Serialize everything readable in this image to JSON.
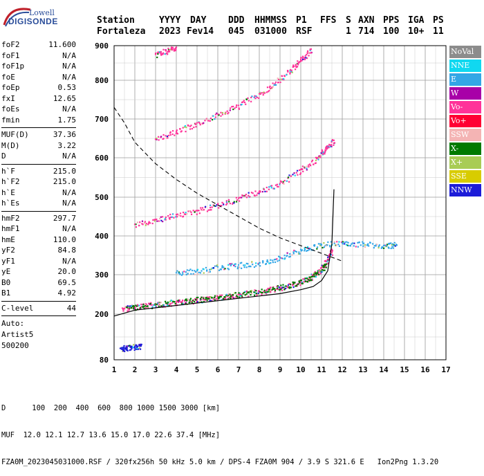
{
  "logo": {
    "line1": "Lowell",
    "line2": "DIGISONDE"
  },
  "header": {
    "row1": [
      "Station",
      "YYYY",
      "DAY",
      "DDD",
      "HHMMSS",
      "P1",
      "FFS",
      "S",
      "AXN",
      "PPS",
      "IGA",
      "PS"
    ],
    "row2": [
      "Fortaleza",
      "2023",
      "Fev14",
      "045",
      "031000",
      "RSF",
      "1",
      "714",
      "100",
      "10+",
      "11"
    ]
  },
  "parameters": {
    "group1": [
      {
        "name": "foF2",
        "value": "11.600"
      },
      {
        "name": "foF1",
        "value": "N/A"
      },
      {
        "name": "foF1p",
        "value": "N/A"
      },
      {
        "name": "foE",
        "value": "N/A"
      },
      {
        "name": "foEp",
        "value": "0.53"
      },
      {
        "name": "fxI",
        "value": "12.65"
      },
      {
        "name": "foEs",
        "value": "N/A"
      },
      {
        "name": "fmin",
        "value": "1.75"
      }
    ],
    "group2": [
      {
        "name": "MUF(D)",
        "value": "37.36"
      },
      {
        "name": "M(D)",
        "value": "3.22"
      },
      {
        "name": "D",
        "value": "N/A"
      }
    ],
    "group3": [
      {
        "name": "h`F",
        "value": "215.0"
      },
      {
        "name": "h`F2",
        "value": "215.0"
      },
      {
        "name": "h`E",
        "value": "N/A"
      },
      {
        "name": "h`Es",
        "value": "N/A"
      }
    ],
    "group4": [
      {
        "name": "hmF2",
        "value": "297.7"
      },
      {
        "name": "hmF1",
        "value": "N/A"
      },
      {
        "name": "hmE",
        "value": "110.0"
      },
      {
        "name": "yF2",
        "value": "84.8"
      },
      {
        "name": "yF1",
        "value": "N/A"
      },
      {
        "name": "yE",
        "value": "20.0"
      },
      {
        "name": "B0",
        "value": "69.5"
      },
      {
        "name": "B1",
        "value": "4.92"
      }
    ],
    "group5": [
      {
        "name": "C-level",
        "value": "44"
      }
    ],
    "autoscale": [
      "Auto:",
      "Artist5",
      "500200"
    ]
  },
  "legend": [
    {
      "label": "NoVal",
      "color": "#8c8c8c"
    },
    {
      "label": "NNE",
      "color": "#10d8f0"
    },
    {
      "label": "E",
      "color": "#33a6e6"
    },
    {
      "label": "W",
      "color": "#a800a8"
    },
    {
      "label": "Vo-",
      "color": "#ff3399"
    },
    {
      "label": "Vo+",
      "color": "#ff0033"
    },
    {
      "label": "SSW",
      "color": "#f4b4b4"
    },
    {
      "label": "X-",
      "color": "#007a00"
    },
    {
      "label": "X+",
      "color": "#a8cc55"
    },
    {
      "label": "SSE",
      "color": "#d8cc00"
    },
    {
      "label": "NNW",
      "color": "#1c1cd8"
    }
  ],
  "footer": {
    "line1": "D      100  200  400  600  800 1000 1500 3000 [km]",
    "line2": "MUF  12.0 12.1 12.7 13.6 15.0 17.0 22.6 37.4 [MHz]",
    "line3": "FZA0M_2023045031000.RSF / 320fx256h 50 kHz 5.0 km / DPS-4 FZA0M 904 / 3.9 S 321.6 E   Ion2Png 1.3.20"
  },
  "chart_data": {
    "type": "scatter",
    "xlim": [
      1,
      17
    ],
    "ylim": [
      80,
      900
    ],
    "xticks": [
      1,
      2,
      3,
      4,
      5,
      6,
      7,
      8,
      9,
      10,
      11,
      12,
      13,
      14,
      15,
      16,
      17
    ],
    "yticks": [
      80,
      200,
      300,
      400,
      500,
      600,
      700,
      800,
      900
    ],
    "grid": true,
    "legend_position": "right",
    "traces": [
      {
        "name": "O-trace 1st hop",
        "color": "#ff3399",
        "points": [
          [
            1.4,
            215
          ],
          [
            2,
            218
          ],
          [
            3,
            225
          ],
          [
            4,
            230
          ],
          [
            5,
            236
          ],
          [
            6,
            243
          ],
          [
            7,
            250
          ],
          [
            8,
            258
          ],
          [
            9,
            268
          ],
          [
            10,
            282
          ],
          [
            10.6,
            298
          ],
          [
            11,
            318
          ],
          [
            11.3,
            340
          ],
          [
            11.5,
            365
          ]
        ]
      },
      {
        "name": "X-trace 1st hop",
        "color": "#007a00",
        "points": [
          [
            1.6,
            217
          ],
          [
            2.5,
            221
          ],
          [
            3.5,
            228
          ],
          [
            4.5,
            234
          ],
          [
            5.5,
            240
          ],
          [
            6.5,
            247
          ],
          [
            7.5,
            254
          ],
          [
            8.5,
            263
          ],
          [
            9.5,
            275
          ],
          [
            10.3,
            290
          ],
          [
            10.8,
            305
          ],
          [
            11.2,
            325
          ]
        ]
      },
      {
        "name": "diffuse echoes",
        "color": "#33a6e6",
        "points": [
          [
            4,
            305
          ],
          [
            5,
            310
          ],
          [
            6,
            320
          ],
          [
            7,
            325
          ],
          [
            8,
            330
          ],
          [
            9,
            345
          ],
          [
            10,
            365
          ],
          [
            11,
            378
          ],
          [
            12,
            382
          ],
          [
            13,
            380
          ],
          [
            14,
            375
          ],
          [
            14.6,
            378
          ]
        ]
      },
      {
        "name": "2nd hop",
        "color": "#ff3399",
        "points": [
          [
            2,
            430
          ],
          [
            3,
            442
          ],
          [
            4,
            455
          ],
          [
            5,
            465
          ],
          [
            6,
            480
          ],
          [
            7,
            497
          ],
          [
            8,
            515
          ],
          [
            9,
            535
          ],
          [
            10,
            570
          ],
          [
            10.8,
            600
          ],
          [
            11.2,
            625
          ],
          [
            11.6,
            645
          ]
        ]
      },
      {
        "name": "3rd hop",
        "color": "#ff3399",
        "points": [
          [
            3,
            648
          ],
          [
            4,
            668
          ],
          [
            5,
            690
          ],
          [
            6,
            712
          ],
          [
            7,
            735
          ],
          [
            8,
            765
          ],
          [
            8.8,
            795
          ],
          [
            9.5,
            830
          ],
          [
            10,
            860
          ],
          [
            10.5,
            890
          ]
        ]
      },
      {
        "name": "4th hop",
        "color": "#ff3399",
        "points": [
          [
            3,
            875
          ],
          [
            3.5,
            885
          ],
          [
            4,
            895
          ]
        ]
      },
      {
        "name": "Es echoes",
        "color": "#1c1cd8",
        "points": [
          [
            1.3,
            110
          ],
          [
            1.6,
            112
          ],
          [
            2,
            115
          ],
          [
            2.3,
            117
          ]
        ]
      }
    ],
    "profile": [
      [
        1,
        195
      ],
      [
        2,
        210
      ],
      [
        3,
        216
      ],
      [
        4,
        222
      ],
      [
        5,
        228
      ],
      [
        6,
        234
      ],
      [
        7,
        240
      ],
      [
        8,
        246
      ],
      [
        9,
        252
      ],
      [
        10,
        262
      ],
      [
        10.6,
        270
      ],
      [
        11,
        285
      ],
      [
        11.3,
        310
      ],
      [
        11.5,
        380
      ],
      [
        11.6,
        520
      ]
    ],
    "muf_curve": [
      [
        1,
        730
      ],
      [
        1.5,
        690
      ],
      [
        2,
        640
      ],
      [
        3,
        585
      ],
      [
        4,
        545
      ],
      [
        5,
        510
      ],
      [
        6,
        480
      ],
      [
        7,
        450
      ],
      [
        8,
        420
      ],
      [
        9,
        395
      ],
      [
        10,
        375
      ],
      [
        11,
        355
      ],
      [
        12,
        335
      ]
    ]
  }
}
